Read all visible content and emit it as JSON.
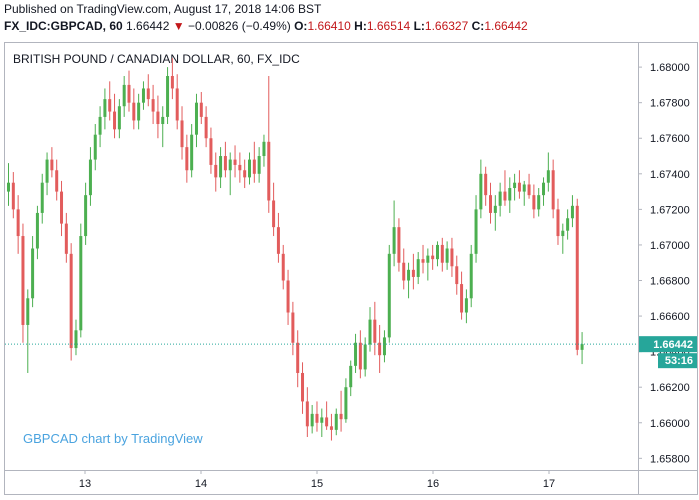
{
  "header": {
    "published": "Published on TradingView.com, August 17, 2018 14:06 BST",
    "symbol": "FX_IDC:GBPCAD, 60",
    "last": "1.66442",
    "change_arrow": "▼",
    "change": "−0.00826 (−0.49%)",
    "open_label": "O:",
    "open": "1.66410",
    "high_label": "H:",
    "high": "1.66514",
    "low_label": "L:",
    "low": "1.66327",
    "close_label": "C:",
    "close": "1.66442"
  },
  "colors": {
    "up": "#4caf50",
    "down": "#e25c5c",
    "price_tag": "#26a69a",
    "quote_down": "#c2171a",
    "axis_text": "#131722",
    "watermark": "#4aa3df"
  },
  "chart_data": {
    "type": "candlestick",
    "title": "BRITISH POUND / CANADIAN DOLLAR, 60, FX_IDC",
    "watermark": "GBPCAD chart by TradingView",
    "x_tick_labels": [
      "13",
      "14",
      "15",
      "16",
      "17"
    ],
    "y_tick_labels": [
      "1.68000",
      "1.67800",
      "1.67600",
      "1.67400",
      "1.67200",
      "1.67000",
      "1.66800",
      "1.66600",
      "1.66400",
      "1.66200",
      "1.66000",
      "1.65800"
    ],
    "y_ticks": [
      1.68,
      1.678,
      1.676,
      1.674,
      1.672,
      1.67,
      1.668,
      1.666,
      1.664,
      1.662,
      1.66,
      1.658
    ],
    "ylim": [
      1.6574,
      1.6813
    ],
    "last_price": 1.66442,
    "last_price_label": "1.66442",
    "countdown_label": "53:16",
    "grid": false,
    "candles": [
      [
        1.673,
        1.6746,
        1.6722,
        1.6735
      ],
      [
        1.6735,
        1.6741,
        1.6715,
        1.672
      ],
      [
        1.672,
        1.6728,
        1.6695,
        1.6705
      ],
      [
        1.6705,
        1.6712,
        1.6645,
        1.6655
      ],
      [
        1.6655,
        1.6675,
        1.6628,
        1.667
      ],
      [
        1.667,
        1.6705,
        1.6665,
        1.6698
      ],
      [
        1.6698,
        1.6722,
        1.6692,
        1.6718
      ],
      [
        1.6718,
        1.674,
        1.6712,
        1.6735
      ],
      [
        1.6735,
        1.6752,
        1.6728,
        1.6748
      ],
      [
        1.6748,
        1.6755,
        1.6738,
        1.6742
      ],
      [
        1.6742,
        1.6748,
        1.6725,
        1.673
      ],
      [
        1.673,
        1.6736,
        1.6705,
        1.6712
      ],
      [
        1.6712,
        1.6718,
        1.669,
        1.6695
      ],
      [
        1.6695,
        1.6701,
        1.6635,
        1.6642
      ],
      [
        1.6642,
        1.6658,
        1.6638,
        1.6652
      ],
      [
        1.6652,
        1.6712,
        1.6648,
        1.6705
      ],
      [
        1.6705,
        1.6735,
        1.67,
        1.6728
      ],
      [
        1.6728,
        1.6755,
        1.6722,
        1.6748
      ],
      [
        1.6748,
        1.6768,
        1.6742,
        1.6762
      ],
      [
        1.6762,
        1.6778,
        1.6755,
        1.6772
      ],
      [
        1.6772,
        1.6788,
        1.6765,
        1.6782
      ],
      [
        1.6782,
        1.6792,
        1.677,
        1.6775
      ],
      [
        1.6775,
        1.6785,
        1.676,
        1.6765
      ],
      [
        1.6765,
        1.6782,
        1.676,
        1.6778
      ],
      [
        1.6778,
        1.6795,
        1.6772,
        1.679
      ],
      [
        1.679,
        1.6798,
        1.6775,
        1.678
      ],
      [
        1.678,
        1.6788,
        1.6765,
        1.677
      ],
      [
        1.677,
        1.6785,
        1.6765,
        1.678
      ],
      [
        1.678,
        1.6792,
        1.6776,
        1.6788
      ],
      [
        1.6788,
        1.6796,
        1.6778,
        1.6782
      ],
      [
        1.6782,
        1.679,
        1.6768,
        1.6775
      ],
      [
        1.6775,
        1.6784,
        1.676,
        1.6768
      ],
      [
        1.6768,
        1.6778,
        1.6755,
        1.6772
      ],
      [
        1.6772,
        1.68,
        1.6768,
        1.6795
      ],
      [
        1.6795,
        1.6805,
        1.6782,
        1.6788
      ],
      [
        1.6788,
        1.6796,
        1.6765,
        1.677
      ],
      [
        1.677,
        1.6778,
        1.6748,
        1.6755
      ],
      [
        1.6755,
        1.6762,
        1.6735,
        1.6742
      ],
      [
        1.6742,
        1.6768,
        1.6738,
        1.6762
      ],
      [
        1.6762,
        1.6785,
        1.6755,
        1.678
      ],
      [
        1.678,
        1.6786,
        1.6768,
        1.6772
      ],
      [
        1.6772,
        1.6778,
        1.6755,
        1.676
      ],
      [
        1.676,
        1.6766,
        1.674,
        1.6745
      ],
      [
        1.6745,
        1.6752,
        1.673,
        1.6738
      ],
      [
        1.6738,
        1.6755,
        1.6732,
        1.675
      ],
      [
        1.675,
        1.6758,
        1.6738,
        1.6742
      ],
      [
        1.6742,
        1.6752,
        1.6728,
        1.6748
      ],
      [
        1.6748,
        1.6756,
        1.6738,
        1.6745
      ],
      [
        1.6745,
        1.6752,
        1.6735,
        1.6742
      ],
      [
        1.6742,
        1.6748,
        1.6732,
        1.6738
      ],
      [
        1.6738,
        1.6752,
        1.6734,
        1.6748
      ],
      [
        1.6748,
        1.6758,
        1.6735,
        1.674
      ],
      [
        1.674,
        1.6755,
        1.6735,
        1.675
      ],
      [
        1.675,
        1.6762,
        1.6744,
        1.6758
      ],
      [
        1.6758,
        1.6795,
        1.6718,
        1.6725
      ],
      [
        1.6725,
        1.6735,
        1.6705,
        1.671
      ],
      [
        1.671,
        1.6718,
        1.669,
        1.6695
      ],
      [
        1.6695,
        1.67,
        1.6675,
        1.668
      ],
      [
        1.668,
        1.6686,
        1.6655,
        1.6662
      ],
      [
        1.6662,
        1.6668,
        1.6638,
        1.6645
      ],
      [
        1.6645,
        1.6652,
        1.662,
        1.6628
      ],
      [
        1.6628,
        1.6634,
        1.6605,
        1.6612
      ],
      [
        1.6612,
        1.662,
        1.6592,
        1.6598
      ],
      [
        1.6598,
        1.661,
        1.6594,
        1.6605
      ],
      [
        1.6605,
        1.6612,
        1.6595,
        1.66
      ],
      [
        1.66,
        1.6608,
        1.6592,
        1.6603
      ],
      [
        1.6603,
        1.6612,
        1.6596,
        1.6598
      ],
      [
        1.6598,
        1.6605,
        1.659,
        1.6596
      ],
      [
        1.6596,
        1.6608,
        1.6593,
        1.6605
      ],
      [
        1.6605,
        1.6618,
        1.6595,
        1.6602
      ],
      [
        1.6602,
        1.6625,
        1.66,
        1.662
      ],
      [
        1.662,
        1.6635,
        1.6615,
        1.6632
      ],
      [
        1.6632,
        1.665,
        1.6628,
        1.6645
      ],
      [
        1.6645,
        1.6652,
        1.6625,
        1.663
      ],
      [
        1.663,
        1.6648,
        1.6626,
        1.6644
      ],
      [
        1.6644,
        1.6665,
        1.664,
        1.6658
      ],
      [
        1.6658,
        1.6668,
        1.6638,
        1.6645
      ],
      [
        1.6645,
        1.6655,
        1.6628,
        1.6638
      ],
      [
        1.6638,
        1.6652,
        1.6634,
        1.6648
      ],
      [
        1.6648,
        1.67,
        1.6645,
        1.6695
      ],
      [
        1.6695,
        1.6725,
        1.6688,
        1.671
      ],
      [
        1.671,
        1.6715,
        1.6685,
        1.669
      ],
      [
        1.669,
        1.6698,
        1.6675,
        1.668
      ],
      [
        1.668,
        1.669,
        1.667,
        1.6686
      ],
      [
        1.6686,
        1.6695,
        1.6675,
        1.6682
      ],
      [
        1.6682,
        1.6696,
        1.6678,
        1.6692
      ],
      [
        1.6692,
        1.67,
        1.6684,
        1.669
      ],
      [
        1.669,
        1.6698,
        1.668,
        1.6694
      ],
      [
        1.6694,
        1.67,
        1.6686,
        1.6692
      ],
      [
        1.6692,
        1.6702,
        1.6688,
        1.67
      ],
      [
        1.67,
        1.6704,
        1.6685,
        1.669
      ],
      [
        1.669,
        1.6702,
        1.6686,
        1.6698
      ],
      [
        1.6698,
        1.6704,
        1.6682,
        1.6688
      ],
      [
        1.6688,
        1.6694,
        1.6672,
        1.6678
      ],
      [
        1.6678,
        1.6685,
        1.6658,
        1.6662
      ],
      [
        1.6662,
        1.6675,
        1.6656,
        1.667
      ],
      [
        1.667,
        1.67,
        1.6665,
        1.6695
      ],
      [
        1.6695,
        1.6728,
        1.669,
        1.672
      ],
      [
        1.672,
        1.6748,
        1.6715,
        1.674
      ],
      [
        1.674,
        1.6744,
        1.6722,
        1.6728
      ],
      [
        1.6728,
        1.6735,
        1.6712,
        1.6718
      ],
      [
        1.6718,
        1.6728,
        1.6708,
        1.6722
      ],
      [
        1.6722,
        1.6735,
        1.6716,
        1.673
      ],
      [
        1.673,
        1.6742,
        1.6722,
        1.6725
      ],
      [
        1.6725,
        1.6738,
        1.6718,
        1.6732
      ],
      [
        1.6732,
        1.674,
        1.6725,
        1.6735
      ],
      [
        1.6735,
        1.6742,
        1.6726,
        1.673
      ],
      [
        1.673,
        1.6736,
        1.6722,
        1.6734
      ],
      [
        1.6734,
        1.674,
        1.6726,
        1.6728
      ],
      [
        1.6728,
        1.6734,
        1.6715,
        1.672
      ],
      [
        1.672,
        1.6732,
        1.6716,
        1.6728
      ],
      [
        1.6728,
        1.6738,
        1.6722,
        1.6735
      ],
      [
        1.6735,
        1.6752,
        1.673,
        1.6742
      ],
      [
        1.6742,
        1.6748,
        1.6715,
        1.672
      ],
      [
        1.672,
        1.6726,
        1.67,
        1.6705
      ],
      [
        1.6705,
        1.6712,
        1.6695,
        1.6708
      ],
      [
        1.6708,
        1.672,
        1.6703,
        1.6715
      ],
      [
        1.6715,
        1.6728,
        1.671,
        1.6722
      ],
      [
        1.6722,
        1.6726,
        1.6638,
        1.6641
      ],
      [
        1.6641,
        1.6651,
        1.6633,
        1.66442
      ]
    ]
  }
}
